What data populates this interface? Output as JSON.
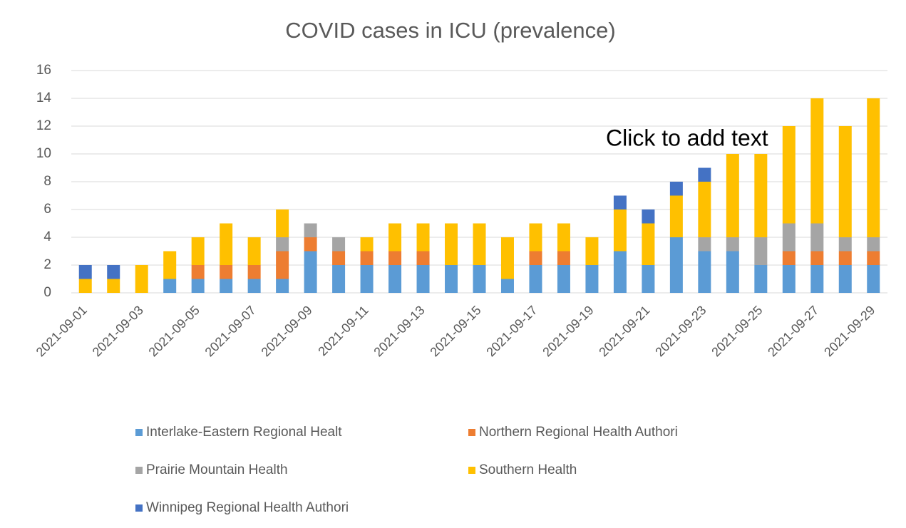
{
  "chart_data": {
    "type": "stacked-bar",
    "title": "COVID cases in ICU (prevalence)",
    "annotation": "Click to add text",
    "categories": [
      "2021-09-01",
      null,
      "2021-09-03",
      null,
      "2021-09-05",
      null,
      "2021-09-07",
      null,
      "2021-09-09",
      null,
      "2021-09-11",
      null,
      "2021-09-13",
      null,
      "2021-09-15",
      null,
      "2021-09-17",
      null,
      "2021-09-19",
      null,
      "2021-09-21",
      null,
      "2021-09-23",
      null,
      "2021-09-25",
      null,
      "2021-09-27",
      null,
      "2021-09-29"
    ],
    "series": [
      {
        "name": "Interlake-Eastern Regional Healt",
        "color": "#5b9bd5",
        "values": [
          0,
          0,
          0,
          1,
          1,
          1,
          1,
          1,
          3,
          2,
          2,
          2,
          2,
          2,
          2,
          1,
          2,
          2,
          2,
          3,
          2,
          4,
          3,
          3,
          2,
          2,
          2,
          2,
          2
        ]
      },
      {
        "name": "Northern Regional Health Authori",
        "color": "#ed7d31",
        "values": [
          0,
          0,
          0,
          0,
          1,
          1,
          1,
          2,
          1,
          1,
          1,
          1,
          1,
          0,
          0,
          0,
          1,
          1,
          0,
          0,
          0,
          0,
          0,
          0,
          0,
          1,
          1,
          1,
          1
        ]
      },
      {
        "name": "Prairie Mountain Health",
        "color": "#a5a5a5",
        "values": [
          0,
          0,
          0,
          0,
          0,
          0,
          0,
          1,
          1,
          1,
          0,
          0,
          0,
          0,
          0,
          0,
          0,
          0,
          0,
          0,
          0,
          0,
          1,
          1,
          2,
          2,
          2,
          1,
          1
        ]
      },
      {
        "name": "Southern Health",
        "color": "#ffc000",
        "values": [
          1,
          1,
          2,
          2,
          2,
          3,
          2,
          2,
          0,
          0,
          1,
          2,
          2,
          3,
          3,
          3,
          2,
          2,
          2,
          3,
          3,
          3,
          4,
          6,
          6,
          7,
          9,
          8,
          10
        ]
      },
      {
        "name": "Winnipeg Regional Health Authori",
        "color": "#4472c4",
        "values": [
          1,
          1,
          0,
          0,
          0,
          0,
          0,
          0,
          0,
          0,
          0,
          0,
          0,
          0,
          0,
          0,
          0,
          0,
          0,
          1,
          1,
          1,
          1,
          0,
          0,
          0,
          0,
          0,
          0
        ]
      }
    ],
    "ylim": [
      0,
      16
    ],
    "yticks": [
      0,
      2,
      4,
      6,
      8,
      10,
      12,
      14,
      16
    ],
    "grid": true,
    "legend": "bottom"
  }
}
